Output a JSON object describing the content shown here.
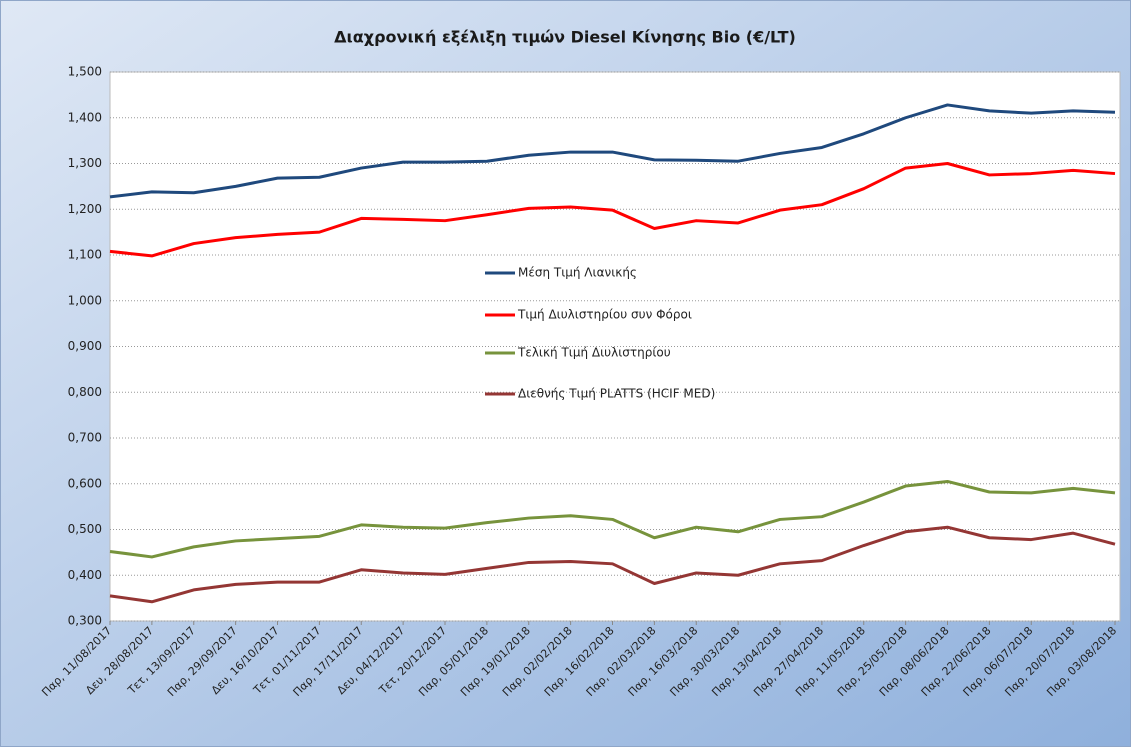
{
  "chart_data": {
    "type": "line",
    "title": "Διαχρονική εξέλιξη τιμών Diesel Κίνησης Bio (€/LT)",
    "categories": [
      "Παρ, 11/08/2017",
      "Δευ, 28/08/2017",
      "Τετ, 13/09/2017",
      "Παρ, 29/09/2017",
      "Δευ, 16/10/2017",
      "Τετ, 01/11/2017",
      "Παρ, 17/11/2017",
      "Δευ, 04/12/2017",
      "Τετ, 20/12/2017",
      "Παρ, 05/01/2018",
      "Παρ, 19/01/2018",
      "Παρ, 02/02/2018",
      "Παρ, 16/02/2018",
      "Παρ, 02/03/2018",
      "Παρ, 16/03/2018",
      "Παρ, 30/03/2018",
      "Παρ, 13/04/2018",
      "Παρ, 27/04/2018",
      "Παρ, 11/05/2018",
      "Παρ, 25/05/2018",
      "Παρ, 08/06/2018",
      "Παρ, 22/06/2018",
      "Παρ, 06/07/2018",
      "Παρ, 20/07/2018",
      "Παρ, 03/08/2018"
    ],
    "series": [
      {
        "name": "Μέση Τιμή Λιανικής",
        "color": "#1f497d",
        "values": [
          1.227,
          1.238,
          1.236,
          1.25,
          1.268,
          1.27,
          1.29,
          1.303,
          1.303,
          1.305,
          1.318,
          1.325,
          1.325,
          1.308,
          1.307,
          1.305,
          1.322,
          1.335,
          1.365,
          1.4,
          1.428,
          1.415,
          1.41,
          1.415,
          1.412
        ]
      },
      {
        "name": "Τιμή Διυλιστηρίου συν Φόροι",
        "color": "#ff0000",
        "values": [
          1.108,
          1.098,
          1.125,
          1.138,
          1.145,
          1.15,
          1.18,
          1.178,
          1.175,
          1.188,
          1.202,
          1.205,
          1.198,
          1.158,
          1.175,
          1.17,
          1.198,
          1.21,
          1.245,
          1.29,
          1.3,
          1.275,
          1.278,
          1.285,
          1.278
        ]
      },
      {
        "name": "Τελική Τιμή Διυλιστηρίου",
        "color": "#77933c",
        "values": [
          0.452,
          0.44,
          0.462,
          0.475,
          0.48,
          0.485,
          0.51,
          0.505,
          0.503,
          0.515,
          0.525,
          0.53,
          0.522,
          0.482,
          0.505,
          0.495,
          0.522,
          0.528,
          0.56,
          0.595,
          0.605,
          0.582,
          0.58,
          0.59,
          0.58
        ]
      },
      {
        "name": "Διεθνής Τιμή PLATTS (HCIF MED)",
        "color": "#943634",
        "values": [
          0.355,
          0.342,
          0.368,
          0.38,
          0.385,
          0.385,
          0.412,
          0.405,
          0.402,
          0.415,
          0.428,
          0.43,
          0.425,
          0.382,
          0.405,
          0.4,
          0.425,
          0.432,
          0.465,
          0.495,
          0.505,
          0.482,
          0.478,
          0.492,
          0.468
        ]
      }
    ],
    "ylim": [
      0.3,
      1.5
    ],
    "yticks": [
      {
        "value": 0.3,
        "label": "0,300"
      },
      {
        "value": 0.4,
        "label": "0,400"
      },
      {
        "value": 0.5,
        "label": "0,500"
      },
      {
        "value": 0.6,
        "label": "0,600"
      },
      {
        "value": 0.7,
        "label": "0,700"
      },
      {
        "value": 0.8,
        "label": "0,800"
      },
      {
        "value": 0.9,
        "label": "0,900"
      },
      {
        "value": 1.0,
        "label": "1,000"
      },
      {
        "value": 1.1,
        "label": "1,100"
      },
      {
        "value": 1.2,
        "label": "1,200"
      },
      {
        "value": 1.3,
        "label": "1,300"
      },
      {
        "value": 1.4,
        "label": "1,400"
      },
      {
        "value": 1.5,
        "label": "1,500"
      }
    ],
    "grid": true
  }
}
